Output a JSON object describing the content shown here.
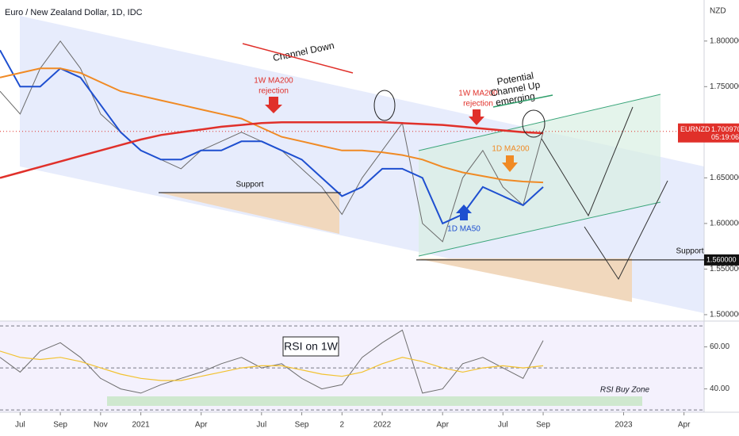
{
  "chart_data": [
    {
      "type": "line",
      "title": "Euro / New Zealand Dollar, 1D, IDC",
      "currency": "NZD",
      "symbol": "EURNZD",
      "last_price": {
        "value": 1.70097,
        "label": "1.700970"
      },
      "countdown": "05:19:06",
      "support_level": {
        "value": 1.56,
        "label": "1.560000"
      },
      "x": [
        "2020-06",
        "2020-07",
        "2020-08",
        "2020-09",
        "2020-10",
        "2020-11",
        "2020-12",
        "2021-01",
        "2021-02",
        "2021-03",
        "2021-04",
        "2021-05",
        "2021-06",
        "2021-07",
        "2021-08",
        "2021-09",
        "2021-10",
        "2021-11",
        "2021-12",
        "2022-01",
        "2022-02",
        "2022-03",
        "2022-04",
        "2022-05",
        "2022-06",
        "2022-07",
        "2022-08",
        "2022-09"
      ],
      "series": [
        {
          "color": "#6b6b6b",
          "values": [
            1.745,
            1.72,
            1.77,
            1.8,
            1.77,
            1.72,
            1.7,
            1.68,
            1.67,
            1.66,
            1.68,
            1.69,
            1.7,
            1.69,
            1.68,
            1.66,
            1.64,
            1.61,
            1.65,
            1.68,
            1.71,
            1.6,
            1.58,
            1.65,
            1.68,
            1.64,
            1.62,
            1.7
          ]
        },
        {
          "color": "#1e4fd0",
          "values": [
            1.79,
            1.75,
            1.75,
            1.77,
            1.76,
            1.73,
            1.7,
            1.68,
            1.67,
            1.67,
            1.68,
            1.68,
            1.69,
            1.69,
            1.68,
            1.67,
            1.65,
            1.63,
            1.64,
            1.66,
            1.66,
            1.65,
            1.6,
            1.61,
            1.64,
            1.63,
            1.62,
            1.64
          ]
        },
        {
          "color": "#f08a24",
          "values": [
            1.76,
            1.765,
            1.77,
            1.77,
            1.765,
            1.755,
            1.745,
            1.74,
            1.735,
            1.73,
            1.725,
            1.72,
            1.715,
            1.705,
            1.695,
            1.69,
            1.685,
            1.68,
            1.68,
            1.678,
            1.675,
            1.67,
            1.662,
            1.656,
            1.652,
            1.648,
            1.646,
            1.645
          ]
        },
        {
          "color": "#e0302a",
          "values": [
            1.65,
            1.656,
            1.662,
            1.668,
            1.674,
            1.68,
            1.686,
            1.692,
            1.697,
            1.7,
            1.703,
            1.706,
            1.708,
            1.71,
            1.711,
            1.711,
            1.711,
            1.711,
            1.711,
            1.711,
            1.71,
            1.709,
            1.708,
            1.706,
            1.704,
            1.702,
            1.7,
            1.699
          ]
        }
      ],
      "xlim": [
        "2020-06",
        "2023-05"
      ],
      "xticks": [
        {
          "value": "2020-07",
          "label": "Jul"
        },
        {
          "value": "2020-09",
          "label": "Sep"
        },
        {
          "value": "2020-11",
          "label": "Nov"
        },
        {
          "value": "2021-01",
          "label": "2021"
        },
        {
          "value": "2021-04",
          "label": "Apr"
        },
        {
          "value": "2021-07",
          "label": "Jul"
        },
        {
          "value": "2021-09",
          "label": "Sep"
        },
        {
          "value": "2021-11",
          "label": "2"
        },
        {
          "value": "2022-01",
          "label": "2022"
        },
        {
          "value": "2022-04",
          "label": "Apr"
        },
        {
          "value": "2022-07",
          "label": "Jul"
        },
        {
          "value": "2022-09",
          "label": "Sep"
        },
        {
          "value": "2023-01",
          "label": "2023"
        },
        {
          "value": "2023-04",
          "label": "Apr"
        }
      ],
      "ylim": [
        1.493,
        1.845
      ],
      "yticks": [
        {
          "value": 1.5,
          "label": "1.500000"
        },
        {
          "value": 1.55,
          "label": "1.550000"
        },
        {
          "value": 1.6,
          "label": "1.600000"
        },
        {
          "value": 1.65,
          "label": "1.650000"
        },
        {
          "value": 1.7,
          "label": "1.700000"
        },
        {
          "value": 1.75,
          "label": "1.750000"
        },
        {
          "value": 1.8,
          "label": "1.800000"
        }
      ],
      "annotations": [
        [
          "Channel Down"
        ],
        [
          "1W MA200",
          "rejection"
        ],
        [
          "1W MA200",
          "rejection"
        ],
        [
          "Potential",
          "Channel Up",
          "emerging"
        ],
        [
          "Support"
        ],
        [
          "Support"
        ],
        [
          "1D MA200"
        ],
        [
          "1D MA50"
        ]
      ]
    },
    {
      "type": "line",
      "title": "RSI on 1W",
      "zone_label": "RSI Buy Zone",
      "x": [
        "2020-06",
        "2020-07",
        "2020-08",
        "2020-09",
        "2020-10",
        "2020-11",
        "2020-12",
        "2021-01",
        "2021-02",
        "2021-03",
        "2021-04",
        "2021-05",
        "2021-06",
        "2021-07",
        "2021-08",
        "2021-09",
        "2021-10",
        "2021-11",
        "2021-12",
        "2022-01",
        "2022-02",
        "2022-03",
        "2022-04",
        "2022-05",
        "2022-06",
        "2022-07",
        "2022-08",
        "2022-09"
      ],
      "series": [
        {
          "color": "#6e6e6e",
          "values": [
            55,
            48,
            58,
            62,
            55,
            45,
            40,
            38,
            42,
            45,
            48,
            52,
            55,
            50,
            52,
            45,
            40,
            42,
            55,
            62,
            68,
            38,
            40,
            52,
            55,
            50,
            45,
            63
          ]
        },
        {
          "color": "#f2c230",
          "values": [
            58,
            55,
            54,
            55,
            53,
            50,
            47,
            45,
            44,
            44,
            46,
            48,
            50,
            51,
            51,
            49,
            47,
            46,
            48,
            52,
            55,
            53,
            50,
            48,
            50,
            51,
            50,
            51
          ]
        }
      ],
      "levels": [
        30,
        50,
        70
      ],
      "ylim": [
        28.9,
        72.3
      ],
      "yticks": [
        {
          "value": 40,
          "label": "40.00"
        },
        {
          "value": 60,
          "label": "60.00"
        }
      ]
    }
  ]
}
